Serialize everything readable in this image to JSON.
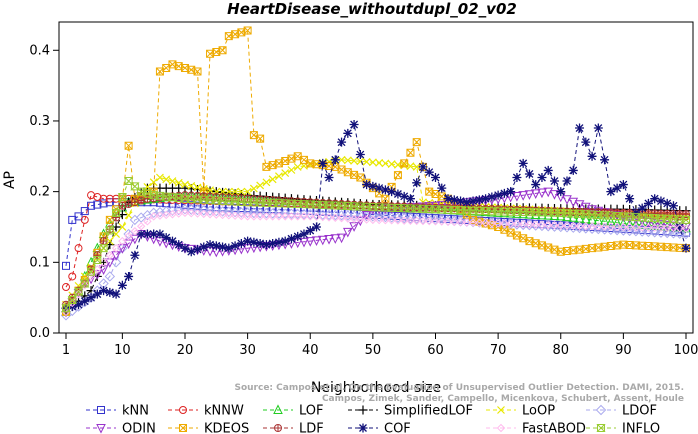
{
  "chart_data": {
    "type": "line",
    "title": "HeartDisease_withoutdupl_02_v02",
    "xlabel": "Neighborhood size",
    "ylabel": "AP",
    "xlim": [
      1,
      100
    ],
    "ylim": [
      0,
      0.44
    ],
    "x_ticks": [
      1,
      10,
      20,
      30,
      40,
      50,
      60,
      70,
      80,
      90,
      100
    ],
    "y_ticks": [
      0.0,
      0.1,
      0.2,
      0.3,
      0.4
    ],
    "y_tick_labels": [
      "0.0",
      "0.1",
      "0.2",
      "0.3",
      "0.4"
    ],
    "grid": false,
    "legend_position": "bottom",
    "watermark": [
      "Source: Campos et al. On the Evaluation of Unsupervised Outlier Detection. DAMI, 2015.",
      "Campos, Zimek, Sander, Campello, Micenkova, Schubert, Assent, Houle"
    ],
    "series": [
      {
        "name": "kNN",
        "color": "#3333cc",
        "marker": "square",
        "anchors": [
          [
            1,
            0.095
          ],
          [
            2,
            0.16
          ],
          [
            3,
            0.165
          ],
          [
            5,
            0.18
          ],
          [
            8,
            0.185
          ],
          [
            15,
            0.185
          ],
          [
            25,
            0.178
          ],
          [
            35,
            0.175
          ],
          [
            45,
            0.17
          ],
          [
            55,
            0.165
          ],
          [
            65,
            0.16
          ],
          [
            75,
            0.155
          ],
          [
            85,
            0.15
          ],
          [
            95,
            0.145
          ],
          [
            100,
            0.142
          ]
        ]
      },
      {
        "name": "kNNW",
        "color": "#dd2222",
        "marker": "circle",
        "anchors": [
          [
            1,
            0.065
          ],
          [
            2,
            0.08
          ],
          [
            3,
            0.12
          ],
          [
            4,
            0.16
          ],
          [
            5,
            0.195
          ],
          [
            7,
            0.19
          ],
          [
            10,
            0.19
          ],
          [
            20,
            0.188
          ],
          [
            30,
            0.185
          ],
          [
            40,
            0.183
          ],
          [
            50,
            0.18
          ],
          [
            60,
            0.178
          ],
          [
            70,
            0.175
          ],
          [
            80,
            0.172
          ],
          [
            90,
            0.168
          ],
          [
            100,
            0.165
          ]
        ]
      },
      {
        "name": "LOF",
        "color": "#22cc22",
        "marker": "triangle-up",
        "anchors": [
          [
            1,
            0.03
          ],
          [
            3,
            0.06
          ],
          [
            5,
            0.1
          ],
          [
            7,
            0.14
          ],
          [
            9,
            0.17
          ],
          [
            11,
            0.185
          ],
          [
            15,
            0.19
          ],
          [
            20,
            0.195
          ],
          [
            30,
            0.19
          ],
          [
            40,
            0.185
          ],
          [
            50,
            0.18
          ],
          [
            60,
            0.175
          ],
          [
            70,
            0.17
          ],
          [
            80,
            0.165
          ],
          [
            90,
            0.155
          ],
          [
            100,
            0.148
          ]
        ]
      },
      {
        "name": "SimplifiedLOF",
        "color": "#000000",
        "marker": "plus",
        "anchors": [
          [
            1,
            0.03
          ],
          [
            3,
            0.045
          ],
          [
            5,
            0.06
          ],
          [
            7,
            0.1
          ],
          [
            9,
            0.15
          ],
          [
            11,
            0.185
          ],
          [
            14,
            0.205
          ],
          [
            20,
            0.205
          ],
          [
            30,
            0.195
          ],
          [
            40,
            0.188
          ],
          [
            50,
            0.182
          ],
          [
            60,
            0.18
          ],
          [
            70,
            0.178
          ],
          [
            80,
            0.176
          ],
          [
            90,
            0.175
          ],
          [
            100,
            0.173
          ]
        ]
      },
      {
        "name": "LoOP",
        "color": "#e8e800",
        "marker": "x",
        "anchors": [
          [
            1,
            0.04
          ],
          [
            4,
            0.08
          ],
          [
            7,
            0.12
          ],
          [
            10,
            0.15
          ],
          [
            13,
            0.2
          ],
          [
            16,
            0.22
          ],
          [
            20,
            0.21
          ],
          [
            25,
            0.2
          ],
          [
            30,
            0.2
          ],
          [
            38,
            0.235
          ],
          [
            45,
            0.245
          ],
          [
            52,
            0.24
          ],
          [
            57,
            0.235
          ],
          [
            58,
            0.185
          ],
          [
            65,
            0.18
          ],
          [
            75,
            0.175
          ],
          [
            85,
            0.17
          ],
          [
            100,
            0.165
          ]
        ]
      },
      {
        "name": "LDOF",
        "color": "#aaaaee",
        "marker": "diamond",
        "anchors": [
          [
            1,
            0.025
          ],
          [
            5,
            0.05
          ],
          [
            8,
            0.08
          ],
          [
            10,
            0.12
          ],
          [
            12,
            0.16
          ],
          [
            15,
            0.17
          ],
          [
            20,
            0.175
          ],
          [
            30,
            0.17
          ],
          [
            40,
            0.168
          ],
          [
            50,
            0.165
          ],
          [
            60,
            0.16
          ],
          [
            70,
            0.155
          ],
          [
            80,
            0.15
          ],
          [
            90,
            0.145
          ],
          [
            100,
            0.14
          ]
        ]
      },
      {
        "name": "ODIN",
        "color": "#9933cc",
        "marker": "triangle-down",
        "anchors": [
          [
            1,
            0.03
          ],
          [
            4,
            0.07
          ],
          [
            7,
            0.09
          ],
          [
            10,
            0.12
          ],
          [
            13,
            0.14
          ],
          [
            16,
            0.13
          ],
          [
            20,
            0.12
          ],
          [
            25,
            0.115
          ],
          [
            30,
            0.12
          ],
          [
            35,
            0.125
          ],
          [
            40,
            0.13
          ],
          [
            45,
            0.135
          ],
          [
            50,
            0.175
          ],
          [
            60,
            0.18
          ],
          [
            70,
            0.19
          ],
          [
            78,
            0.2
          ],
          [
            85,
            0.175
          ],
          [
            95,
            0.155
          ],
          [
            100,
            0.15
          ]
        ]
      },
      {
        "name": "KDEOS",
        "color": "#eeaa00",
        "marker": "square-x",
        "anchors": [
          [
            1,
            0.03
          ],
          [
            5,
            0.09
          ],
          [
            8,
            0.16
          ],
          [
            10,
            0.19
          ],
          [
            11,
            0.265
          ],
          [
            12,
            0.19
          ],
          [
            15,
            0.2
          ],
          [
            16,
            0.37
          ],
          [
            18,
            0.38
          ],
          [
            20,
            0.375
          ],
          [
            22,
            0.37
          ],
          [
            23,
            0.2
          ],
          [
            24,
            0.395
          ],
          [
            26,
            0.4
          ],
          [
            27,
            0.42
          ],
          [
            30,
            0.428
          ],
          [
            31,
            0.28
          ],
          [
            32,
            0.275
          ],
          [
            33,
            0.235
          ],
          [
            35,
            0.24
          ],
          [
            38,
            0.25
          ],
          [
            40,
            0.24
          ],
          [
            44,
            0.235
          ],
          [
            48,
            0.22
          ],
          [
            52,
            0.19
          ],
          [
            55,
            0.24
          ],
          [
            57,
            0.27
          ],
          [
            59,
            0.2
          ],
          [
            62,
            0.19
          ],
          [
            66,
            0.16
          ],
          [
            70,
            0.15
          ],
          [
            75,
            0.13
          ],
          [
            80,
            0.115
          ],
          [
            90,
            0.125
          ],
          [
            100,
            0.12
          ]
        ]
      },
      {
        "name": "LDF",
        "color": "#aa3333",
        "marker": "circle-plus",
        "anchors": [
          [
            1,
            0.04
          ],
          [
            4,
            0.07
          ],
          [
            7,
            0.13
          ],
          [
            10,
            0.18
          ],
          [
            14,
            0.19
          ],
          [
            20,
            0.195
          ],
          [
            30,
            0.19
          ],
          [
            40,
            0.185
          ],
          [
            50,
            0.18
          ],
          [
            60,
            0.177
          ],
          [
            70,
            0.175
          ],
          [
            80,
            0.172
          ],
          [
            90,
            0.17
          ],
          [
            100,
            0.168
          ]
        ]
      },
      {
        "name": "COF",
        "color": "#11117a",
        "marker": "asterisk",
        "anchors": [
          [
            1,
            0.035
          ],
          [
            3,
            0.04
          ],
          [
            5,
            0.05
          ],
          [
            7,
            0.06
          ],
          [
            9,
            0.055
          ],
          [
            11,
            0.08
          ],
          [
            13,
            0.14
          ],
          [
            16,
            0.14
          ],
          [
            18,
            0.13
          ],
          [
            21,
            0.115
          ],
          [
            24,
            0.125
          ],
          [
            27,
            0.12
          ],
          [
            30,
            0.13
          ],
          [
            33,
            0.125
          ],
          [
            36,
            0.13
          ],
          [
            39,
            0.14
          ],
          [
            41,
            0.15
          ],
          [
            42,
            0.24
          ],
          [
            43,
            0.22
          ],
          [
            45,
            0.27
          ],
          [
            47,
            0.295
          ],
          [
            49,
            0.21
          ],
          [
            51,
            0.205
          ],
          [
            53,
            0.2
          ],
          [
            56,
            0.19
          ],
          [
            58,
            0.235
          ],
          [
            60,
            0.22
          ],
          [
            62,
            0.19
          ],
          [
            65,
            0.185
          ],
          [
            68,
            0.19
          ],
          [
            72,
            0.2
          ],
          [
            74,
            0.24
          ],
          [
            76,
            0.21
          ],
          [
            78,
            0.23
          ],
          [
            80,
            0.2
          ],
          [
            82,
            0.23
          ],
          [
            83,
            0.29
          ],
          [
            85,
            0.25
          ],
          [
            86,
            0.29
          ],
          [
            88,
            0.2
          ],
          [
            90,
            0.21
          ],
          [
            92,
            0.17
          ],
          [
            95,
            0.19
          ],
          [
            98,
            0.18
          ],
          [
            100,
            0.12
          ]
        ]
      },
      {
        "name": "FastABOD",
        "color": "#ffbbee",
        "marker": "diamond-small",
        "anchors": [
          [
            1,
            0.03
          ],
          [
            5,
            0.08
          ],
          [
            10,
            0.13
          ],
          [
            15,
            0.165
          ],
          [
            20,
            0.17
          ],
          [
            30,
            0.165
          ],
          [
            40,
            0.165
          ],
          [
            50,
            0.16
          ],
          [
            60,
            0.158
          ],
          [
            70,
            0.155
          ],
          [
            80,
            0.152
          ],
          [
            90,
            0.15
          ],
          [
            100,
            0.148
          ]
        ]
      },
      {
        "name": "INFLO",
        "color": "#99cc33",
        "marker": "hourglass",
        "anchors": [
          [
            1,
            0.035
          ],
          [
            4,
            0.07
          ],
          [
            7,
            0.12
          ],
          [
            9,
            0.17
          ],
          [
            11,
            0.215
          ],
          [
            13,
            0.2
          ],
          [
            15,
            0.195
          ],
          [
            20,
            0.19
          ],
          [
            30,
            0.185
          ],
          [
            40,
            0.182
          ],
          [
            50,
            0.178
          ],
          [
            60,
            0.175
          ],
          [
            70,
            0.172
          ],
          [
            80,
            0.17
          ],
          [
            90,
            0.165
          ],
          [
            100,
            0.16
          ]
        ]
      }
    ]
  }
}
